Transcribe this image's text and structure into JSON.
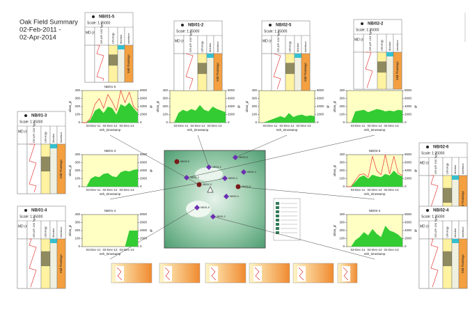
{
  "header": {
    "title": "Oak Field Summary",
    "date_from": "02-Feb-2011 -",
    "date_to": "02-Apr-2014"
  },
  "log_columns": [
    "MD (m)",
    "GR API 150 Type",
    "Lithology",
    "Monitor",
    "Interface"
  ],
  "wells": [
    {
      "name": "NB/01-5",
      "scale": "Scale: 1:25000",
      "zone": "Mid Flamingo"
    },
    {
      "name": "NB/01-2",
      "scale": "Scale: 1:25000",
      "zone": "Mid Flamingo"
    },
    {
      "name": "NB/02-5",
      "scale": "Scale: 1:25000",
      "zone": "Mid Flamingo"
    },
    {
      "name": "NB/02-2",
      "scale": "Scale: 1:25000",
      "zone": "Mid Flamingo"
    },
    {
      "name": "NB/01-3",
      "scale": "Scale: 1:25000",
      "zone": "Mid Flamingo"
    },
    {
      "name": "NB/01-4",
      "scale": "Scale: 1:25000",
      "zone": "Mid Flamingo"
    },
    {
      "name": "NB/02-6",
      "scale": "Scale: 1:25000",
      "zone": "Mid Flamingo"
    },
    {
      "name": "NB/02-4",
      "scale": "Scale: 1:25000",
      "zone": "Mid Flamingo"
    }
  ],
  "charts": [
    {
      "title": "NB/01-5",
      "ylabel": "oilsm_pl",
      "y2label": "gr",
      "xlabel": "mth_timestamp",
      "xticks": [
        "03-Dec-11",
        "02-Dec-12",
        "02-Dec-13"
      ],
      "ylim": [
        0,
        400
      ],
      "yticks": [
        0,
        100,
        200,
        300,
        400
      ],
      "y2lim": [
        0,
        8000
      ],
      "y2ticks": [
        0,
        2000,
        4000,
        6000,
        8000
      ],
      "series": [
        {
          "color": "#33cc33",
          "values": [
            0,
            0,
            40,
            150,
            180,
            120,
            200,
            180,
            100,
            230,
            200,
            250,
            180,
            120
          ]
        },
        {
          "color": "#e83030",
          "values": [
            0,
            0,
            60,
            230,
            300,
            180,
            350,
            260,
            150,
            400,
            250,
            380,
            200,
            150
          ]
        }
      ]
    },
    {
      "title": "NB/01-2",
      "ylabel": "oilsm_pl",
      "y2label": "gr",
      "xlabel": "mth_timestamp",
      "xticks": [
        "03-Dec-11",
        "02-Dec-12",
        "02-Dec-13"
      ],
      "ylim": [
        0,
        400
      ],
      "yticks": [
        0,
        100,
        200,
        300,
        400
      ],
      "y2lim": [
        0,
        8000
      ],
      "y2ticks": [
        0,
        2000,
        4000,
        6000,
        8000
      ],
      "series": [
        {
          "color": "#33cc33",
          "values": [
            0,
            0,
            120,
            160,
            140,
            170,
            150,
            220,
            160,
            140,
            200,
            170,
            150,
            130
          ]
        }
      ]
    },
    {
      "title": "NB/02-5",
      "ylabel": "oilsm_pl",
      "y2label": "gr",
      "xlabel": "mth_timestamp",
      "xticks": [
        "03-Dec-11",
        "02-Dec-12",
        "02-Dec-13"
      ],
      "ylim": [
        0,
        400
      ],
      "yticks": [
        0,
        100,
        200,
        300,
        400
      ],
      "y2lim": [
        0,
        8000
      ],
      "y2ticks": [
        0,
        2000,
        4000,
        6000,
        8000
      ],
      "series": [
        {
          "color": "#33cc33",
          "values": [
            0,
            0,
            20,
            40,
            60,
            80,
            60,
            120,
            70,
            90,
            100,
            80,
            90,
            80
          ]
        }
      ]
    },
    {
      "title": "NB/02-2",
      "ylabel": "oilsm_pl",
      "y2label": "gr",
      "xlabel": "mth_timestamp",
      "xticks": [
        "03-Dec-11",
        "02-Dec-12",
        "02-Dec-13"
      ],
      "ylim": [
        0,
        400
      ],
      "yticks": [
        0,
        100,
        200,
        300,
        400
      ],
      "y2lim": [
        0,
        8000
      ],
      "y2ticks": [
        0,
        2000,
        4000,
        6000,
        8000
      ],
      "series": [
        {
          "color": "#33cc33",
          "values": [
            0,
            0,
            140,
            150,
            160,
            130,
            150,
            170,
            160,
            140,
            150,
            140,
            160,
            150
          ]
        }
      ]
    },
    {
      "title": "NB/01-3",
      "ylabel": "oilsm_pl",
      "y2label": "gr",
      "xlabel": "mth_timestamp",
      "xticks": [
        "03-Dec-11",
        "02-Dec-12",
        "02-Dec-13"
      ],
      "ylim": [
        0,
        400
      ],
      "yticks": [
        0,
        100,
        200,
        300,
        400
      ],
      "y2lim": [
        0,
        8000
      ],
      "y2ticks": [
        0,
        2000,
        4000,
        6000,
        8000
      ],
      "series": [
        {
          "color": "#33cc33",
          "values": [
            0,
            0,
            100,
            130,
            120,
            160,
            170,
            130,
            120,
            180,
            200,
            190,
            210,
            220
          ]
        }
      ]
    },
    {
      "title": "NB/01-4",
      "ylabel": "oilsm_pl",
      "y2label": "gr",
      "xlabel": "mth_timestamp",
      "xticks": [
        "03-Dec-11",
        "02-Dec-12",
        "02-Dec-13"
      ],
      "ylim": [
        0,
        400
      ],
      "yticks": [
        0,
        100,
        200,
        300,
        400
      ],
      "y2lim": [
        0,
        8000
      ],
      "y2ticks": [
        0,
        2000,
        4000,
        6000,
        8000
      ],
      "series": [
        {
          "color": "#33cc33",
          "values": [
            0,
            0,
            0,
            0,
            0,
            0,
            0,
            0,
            0,
            0,
            0,
            200,
            200,
            200
          ]
        }
      ]
    },
    {
      "title": "NB/02-6",
      "ylabel": "oilsm_pl",
      "y2label": "gr",
      "xlabel": "mth_timestamp",
      "xticks": [
        "03-Dec-11",
        "02-Dec-12",
        "02-Dec-13"
      ],
      "ylim": [
        0,
        400
      ],
      "yticks": [
        0,
        100,
        200,
        300,
        400
      ],
      "y2lim": [
        0,
        8000
      ],
      "y2ticks": [
        0,
        2000,
        4000,
        6000,
        8000
      ],
      "series": [
        {
          "color": "#33cc33",
          "values": [
            0,
            0,
            60,
            120,
            140,
            100,
            150,
            130,
            120,
            160,
            140,
            200,
            150,
            130
          ]
        },
        {
          "color": "#e83030",
          "values": [
            0,
            0,
            80,
            150,
            160,
            120,
            380,
            200,
            150,
            400,
            160,
            380,
            170,
            140
          ]
        }
      ]
    },
    {
      "title": "NB/02-4",
      "ylabel": "oilsm_pl",
      "y2label": "gr",
      "xlabel": "mth_timestamp",
      "xticks": [
        "03-Dec-11",
        "02-Dec-12",
        "02-Dec-13"
      ],
      "ylim": [
        0,
        400
      ],
      "yticks": [
        0,
        100,
        200,
        300,
        400
      ],
      "y2lim": [
        0,
        8000
      ],
      "y2ticks": [
        0,
        2000,
        4000,
        6000,
        8000
      ],
      "series": [
        {
          "color": "#33cc33",
          "values": [
            0,
            0,
            80,
            120,
            180,
            140,
            220,
            160,
            120,
            260,
            200,
            180,
            150,
            100
          ]
        }
      ]
    }
  ]
}
